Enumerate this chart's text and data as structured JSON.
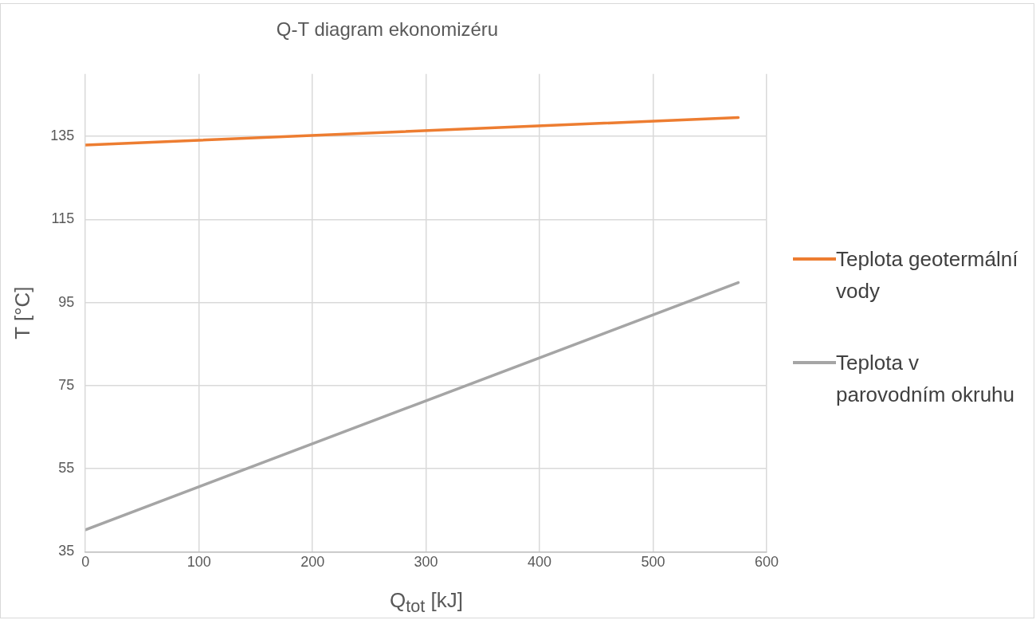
{
  "chart_data": {
    "type": "line",
    "title": "Q-T diagram ekonomizéru",
    "xlabel": "Q$_{tot}$ [kJ]",
    "ylabel": "T [°C]",
    "x": [
      0,
      575
    ],
    "series": [
      {
        "name": "Teplota geotermální vody",
        "color": "#ed7d31",
        "values": [
          132.9,
          139.5
        ]
      },
      {
        "name": "Teplota v parovodním okruhu",
        "color": "#a5a5a5",
        "values": [
          40.3,
          99.8
        ]
      }
    ],
    "xlim": [
      0,
      600
    ],
    "xticks": [
      0,
      100,
      200,
      300,
      400,
      500,
      600
    ],
    "ylim": [
      35,
      150
    ],
    "yticks": [
      35,
      55,
      75,
      95,
      115,
      135
    ],
    "grid": true,
    "legend": "right",
    "marker": "none",
    "line_style": "solid"
  }
}
